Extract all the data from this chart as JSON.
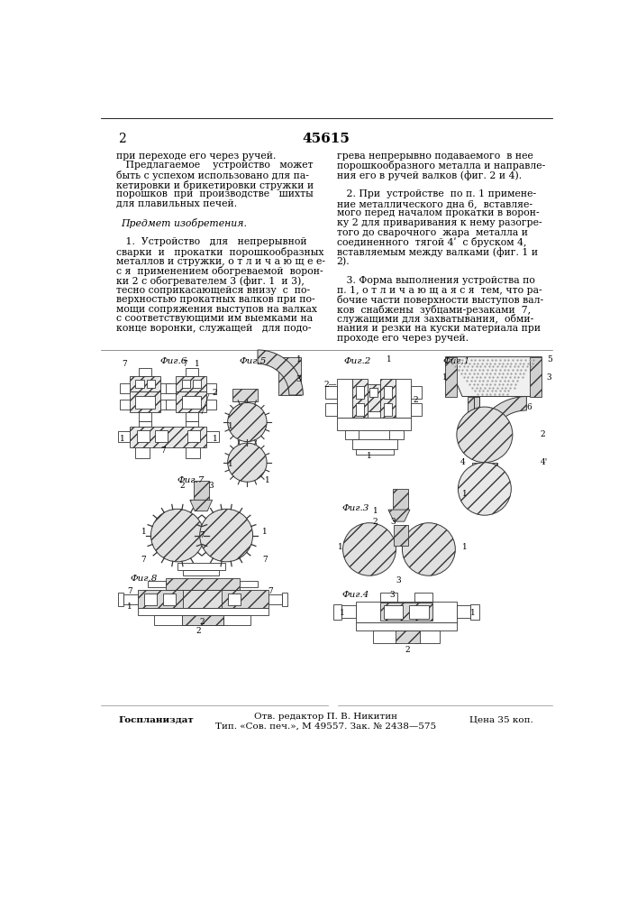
{
  "page_number": "2",
  "patent_number": "45615",
  "bg_color": "#ffffff",
  "text_color": "#000000",
  "left_col_text": [
    [
      "при переходе его через ручей.",
      false
    ],
    [
      "   Предлагаемое    устройство   может",
      false
    ],
    [
      "быть с успехом использовано для па-",
      false
    ],
    [
      "кетировки и брикетировки стружки и",
      false
    ],
    [
      "порошков  при  производстве   шихты",
      false
    ],
    [
      "для плавильных печей.",
      false
    ],
    [
      "",
      false
    ],
    [
      "Предмет изобретения.",
      true
    ],
    [
      "",
      false
    ],
    [
      "   1.  Устройство   для   непрерывной",
      false
    ],
    [
      "сварки  и   прокатки  порошкообразных",
      false
    ],
    [
      "металлов и стружки, о т л и ч а ю щ е е-",
      false
    ],
    [
      "с я  применением обогреваемой  ворон-",
      false
    ],
    [
      "ки 2 с обогревателем 3 (фиг. 1  и 3),",
      false
    ],
    [
      "тесно соприкасающейся внизу  с  по-",
      false
    ],
    [
      "верхностью прокатных валков при по-",
      false
    ],
    [
      "мощи сопряжения выступов на валках",
      false
    ],
    [
      "с соответствующими им выемками на",
      false
    ],
    [
      "конце воронки, служащей   для подо-",
      false
    ]
  ],
  "right_col_text": [
    "грева непрерывно подаваемого  в нее",
    "порошкообразного металла и направле-",
    "ния его в ручей валков (фиг. 2 и 4).",
    "",
    "   2. При  устройстве  по п. 1 примене-",
    "ние металлического дна 6,  вставляе-",
    "мого перед началом прокатки в ворон-",
    "ку 2 для приваривания к нему разогре-",
    "того до сварочного  жара  металла и",
    "соединенного  тягой 4ʹ  с бруском 4,",
    "вставляемым между валками (фиг. 1 и",
    "2).",
    "",
    "   3. Форма выполнения устройства по",
    "п. 1, о т л и ч а ю щ а я с я  тем, что ра-",
    "бочие части поверхности выступов вал-",
    "ков  снабжены  зубцами-резаками  7,",
    "служащими для захватывания,  обми-",
    "нания и резки на куски материала при",
    "проходе его через ручей."
  ],
  "footer_left": "Госпланиздат",
  "footer_center1": "Отв. редактор П. В. Никитин",
  "footer_center2": "Тип. «Сов. печ.», М 49557. Зак. № 2438—575",
  "footer_right": "Цена 35 коп."
}
